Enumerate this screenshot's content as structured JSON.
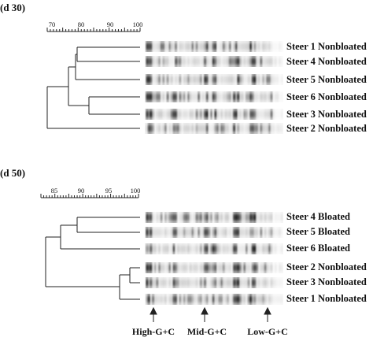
{
  "panels": [
    {
      "title": "(d 30)",
      "scale_ticks": [
        "70",
        "80",
        "90",
        "100"
      ],
      "lanes": [
        {
          "label": "Steer 1 Nonbloated"
        },
        {
          "label": "Steer 4 Nonbloated"
        },
        {
          "label": "Steer 5 Nonbloated"
        },
        {
          "label": "Steer 6 Nonbloated"
        },
        {
          "label": "Steer 3 Nonbloated"
        },
        {
          "label": "Steer 2 Nonbloated"
        }
      ]
    },
    {
      "title": "(d 50)",
      "scale_ticks": [
        "85",
        "90",
        "95",
        "100"
      ],
      "lanes": [
        {
          "label": "Steer 4 Bloated"
        },
        {
          "label": "Steer 5 Bloated"
        },
        {
          "label": "Steer 6 Bloated"
        },
        {
          "label": "Steer 2 Nonbloated"
        },
        {
          "label": "Steer 3 Nonbloated"
        },
        {
          "label": "Steer 1 Nonbloated"
        }
      ]
    }
  ],
  "markers": [
    {
      "label": "High-G+C"
    },
    {
      "label": "Mid-G+C"
    },
    {
      "label": "Low-G+C"
    }
  ]
}
